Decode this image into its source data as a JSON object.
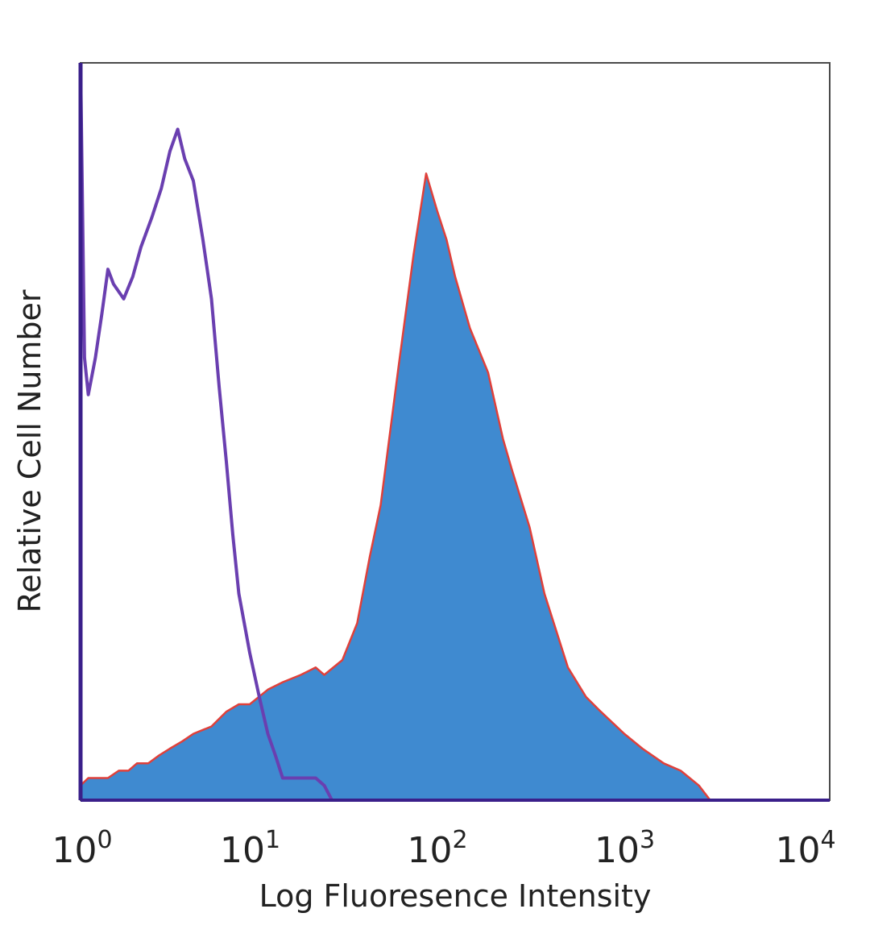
{
  "chart_data": {
    "type": "area",
    "xlabel": "Log Fluoresence Intensity",
    "ylabel": "Relative Cell Number",
    "x_scale": "log",
    "xlim": [
      1,
      10000
    ],
    "ylim": [
      0,
      100
    ],
    "grid": false,
    "x_ticks": [
      {
        "base": "10",
        "exp": "0",
        "value": 1
      },
      {
        "base": "10",
        "exp": "1",
        "value": 10
      },
      {
        "base": "10",
        "exp": "2",
        "value": 100
      },
      {
        "base": "10",
        "exp": "3",
        "value": 1000
      },
      {
        "base": "10",
        "exp": "4",
        "value": 10000
      }
    ],
    "series": [
      {
        "style": "filled",
        "fill_color": "#3f8ad0",
        "edge_color": "#e0403a",
        "points": [
          [
            1.0,
            2
          ],
          [
            1.1,
            3
          ],
          [
            1.25,
            3
          ],
          [
            1.4,
            3
          ],
          [
            1.6,
            4
          ],
          [
            1.8,
            4
          ],
          [
            2.0,
            5
          ],
          [
            2.3,
            5
          ],
          [
            2.6,
            6
          ],
          [
            3.0,
            7
          ],
          [
            3.5,
            8
          ],
          [
            4.0,
            9
          ],
          [
            5.0,
            10
          ],
          [
            6.0,
            12
          ],
          [
            7.0,
            13
          ],
          [
            8.0,
            13
          ],
          [
            10.0,
            15
          ],
          [
            12.0,
            16
          ],
          [
            15.0,
            17
          ],
          [
            18.0,
            18
          ],
          [
            20.0,
            17
          ],
          [
            25.0,
            19
          ],
          [
            30.0,
            24
          ],
          [
            35.0,
            33
          ],
          [
            40.0,
            40
          ],
          [
            50.0,
            59
          ],
          [
            60.0,
            74
          ],
          [
            70.0,
            85
          ],
          [
            80.0,
            80
          ],
          [
            90.0,
            76
          ],
          [
            100.0,
            71
          ],
          [
            120.0,
            64
          ],
          [
            150.0,
            58
          ],
          [
            180.0,
            49
          ],
          [
            200.0,
            45
          ],
          [
            250.0,
            37
          ],
          [
            300.0,
            28
          ],
          [
            400.0,
            18
          ],
          [
            500.0,
            14
          ],
          [
            600.0,
            12
          ],
          [
            800.0,
            9
          ],
          [
            1000.0,
            7
          ],
          [
            1300.0,
            5
          ],
          [
            1600.0,
            4
          ],
          [
            2000.0,
            2
          ],
          [
            2300.0,
            0
          ]
        ]
      },
      {
        "style": "line",
        "line_color": "#6a3fb0",
        "points": [
          [
            1.0,
            100
          ],
          [
            1.05,
            60
          ],
          [
            1.1,
            55
          ],
          [
            1.2,
            60
          ],
          [
            1.3,
            66
          ],
          [
            1.4,
            72
          ],
          [
            1.5,
            70
          ],
          [
            1.7,
            68
          ],
          [
            1.9,
            71
          ],
          [
            2.1,
            75
          ],
          [
            2.4,
            79
          ],
          [
            2.7,
            83
          ],
          [
            3.0,
            88
          ],
          [
            3.3,
            91
          ],
          [
            3.6,
            87
          ],
          [
            4.0,
            84
          ],
          [
            4.5,
            76
          ],
          [
            5.0,
            68
          ],
          [
            5.5,
            56
          ],
          [
            6.0,
            46
          ],
          [
            6.5,
            36
          ],
          [
            7.0,
            28
          ],
          [
            8.0,
            20
          ],
          [
            9.0,
            14
          ],
          [
            10.0,
            9
          ],
          [
            11.0,
            6
          ],
          [
            12.0,
            3
          ],
          [
            14.0,
            3
          ],
          [
            16.0,
            3
          ],
          [
            18.0,
            3
          ],
          [
            20.0,
            2
          ],
          [
            22.0,
            0
          ],
          [
            10000.0,
            0
          ]
        ]
      }
    ]
  }
}
